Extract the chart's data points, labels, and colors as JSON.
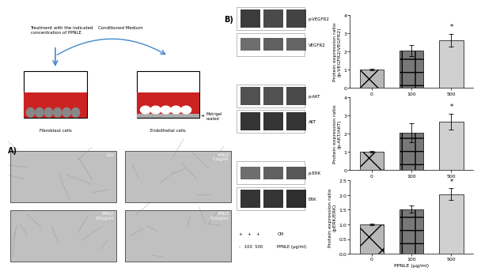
{
  "charts": [
    {
      "ylabel": "Protein expression ratio\n(p-VEGFR2/VEGFR2)",
      "xlabel": "PPNLE (μg/ml)",
      "categories": [
        "0",
        "100",
        "500"
      ],
      "values": [
        1.0,
        2.05,
        2.6
      ],
      "errors": [
        0.05,
        0.3,
        0.35
      ],
      "ylim": [
        0,
        4
      ],
      "yticks": [
        0,
        1,
        2,
        3,
        4
      ],
      "star_bar": 2
    },
    {
      "ylabel": "Protein expression ratio\n(p-AKT/AKT)",
      "xlabel": "PPNLE (μg/ml)",
      "categories": [
        "0",
        "100",
        "500"
      ],
      "values": [
        1.0,
        2.05,
        2.65
      ],
      "errors": [
        0.05,
        0.5,
        0.45
      ],
      "ylim": [
        0,
        4
      ],
      "yticks": [
        0,
        1,
        2,
        3,
        4
      ],
      "star_bar": 2
    },
    {
      "ylabel": "Protein expression ratio\n(pERK/ERK)",
      "xlabel": "PPNLE (μg/ml)",
      "categories": [
        "0",
        "100",
        "500"
      ],
      "values": [
        1.0,
        1.52,
        2.03
      ],
      "errors": [
        0.04,
        0.12,
        0.2
      ],
      "ylim": [
        0,
        2.5
      ],
      "yticks": [
        0.0,
        0.5,
        1.0,
        1.5,
        2.0,
        2.5
      ],
      "star_bar": 2
    }
  ],
  "hatch_patterns": [
    "x",
    "+",
    "="
  ],
  "bar_face_colors": [
    "#b8b8b8",
    "#787878",
    "#d0d0d0"
  ],
  "bar_edgecolor": "black",
  "figure_bg": "white",
  "fontsize_label": 4.5,
  "fontsize_tick": 4.5,
  "fontsize_star": 6,
  "wb_labels": [
    "p-VEGFR2",
    "VEGFR2",
    "p-AKT",
    "AKT",
    "p-ERK",
    "ERK"
  ],
  "wb_cm_labels": [
    "CM",
    "PPNLE (μg/ml)"
  ],
  "wb_cm_vals": [
    "+  +  +",
    "-  100  500"
  ],
  "micro_labels": [
    "Con",
    "PPNLE\n50ug/ml",
    "PPNLE\n100ug/ml",
    "PPNLE\n500ug/ml"
  ],
  "diagram_text1": "Treatment with the indicated\nconcentration of PPNLE",
  "diagram_text2": "Conditioned Medium",
  "diagram_text3": "Fibroblast cells",
  "diagram_text4": "Endothelial cells",
  "diagram_text5": "Matrigel\ncoated"
}
